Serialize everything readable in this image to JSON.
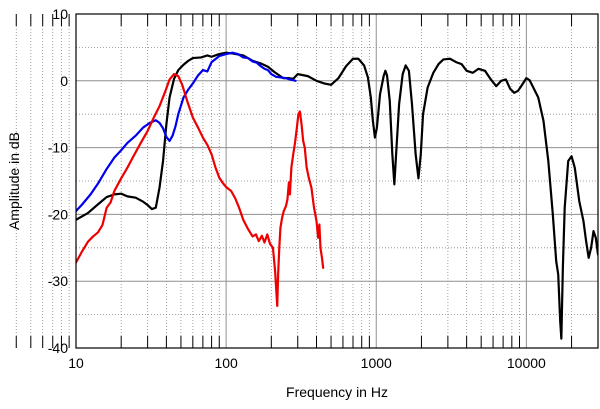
{
  "chart_data": {
    "type": "line",
    "title": "",
    "xlabel": "Frequency in Hz",
    "ylabel": "Amplitude in dB",
    "xscale": "log",
    "xlim": [
      10,
      30000
    ],
    "ylim": [
      -40,
      10
    ],
    "grid": true,
    "x_ticks": [
      10,
      100,
      1000,
      10000
    ],
    "x_tick_labels": [
      "10",
      "100",
      "1000",
      "10000"
    ],
    "y_ticks": [
      10,
      0,
      -10,
      -20,
      -30,
      -40
    ],
    "y_tick_labels": [
      "10",
      "0",
      "-10",
      "-20",
      "-30",
      "-40"
    ],
    "series": [
      {
        "color": "#000000",
        "points": [
          [
            10,
            -20.8
          ],
          [
            12,
            -19.8
          ],
          [
            14,
            -18.5
          ],
          [
            16,
            -17.4
          ],
          [
            18,
            -17.0
          ],
          [
            20,
            -16.9
          ],
          [
            22,
            -17.3
          ],
          [
            25,
            -17.5
          ],
          [
            28,
            -18.1
          ],
          [
            30,
            -18.6
          ],
          [
            32,
            -19.2
          ],
          [
            34,
            -19.0
          ],
          [
            36,
            -16.0
          ],
          [
            38,
            -12.0
          ],
          [
            40,
            -6.5
          ],
          [
            42,
            -2.5
          ],
          [
            45,
            0.3
          ],
          [
            48,
            1.6
          ],
          [
            52,
            2.4
          ],
          [
            56,
            3.0
          ],
          [
            60,
            3.4
          ],
          [
            68,
            3.5
          ],
          [
            75,
            3.8
          ],
          [
            80,
            3.6
          ],
          [
            90,
            4.0
          ],
          [
            100,
            4.2
          ],
          [
            110,
            4.1
          ],
          [
            130,
            3.8
          ],
          [
            150,
            3.0
          ],
          [
            170,
            2.6
          ],
          [
            190,
            2.1
          ],
          [
            210,
            1.3
          ],
          [
            240,
            0.4
          ],
          [
            260,
            0.4
          ],
          [
            280,
            0.3
          ],
          [
            300,
            1.0
          ],
          [
            350,
            0.7
          ],
          [
            400,
            0.0
          ],
          [
            450,
            -0.4
          ],
          [
            500,
            -0.6
          ],
          [
            560,
            0.4
          ],
          [
            630,
            2.2
          ],
          [
            700,
            3.3
          ],
          [
            760,
            3.3
          ],
          [
            830,
            2.3
          ],
          [
            880,
            0.5
          ],
          [
            920,
            -2.5
          ],
          [
            950,
            -6.0
          ],
          [
            980,
            -8.5
          ],
          [
            1010,
            -7.0
          ],
          [
            1060,
            -2.0
          ],
          [
            1120,
            0.7
          ],
          [
            1150,
            1.5
          ],
          [
            1180,
            0.8
          ],
          [
            1230,
            -3.0
          ],
          [
            1280,
            -11.0
          ],
          [
            1320,
            -15.5
          ],
          [
            1360,
            -10.5
          ],
          [
            1420,
            -3.5
          ],
          [
            1500,
            1.0
          ],
          [
            1570,
            2.3
          ],
          [
            1650,
            1.5
          ],
          [
            1730,
            -3.5
          ],
          [
            1830,
            -11.0
          ],
          [
            1910,
            -14.6
          ],
          [
            1980,
            -11.0
          ],
          [
            2050,
            -5.0
          ],
          [
            2200,
            -1.0
          ],
          [
            2400,
            1.2
          ],
          [
            2600,
            2.5
          ],
          [
            2800,
            3.2
          ],
          [
            3100,
            3.3
          ],
          [
            3400,
            2.8
          ],
          [
            3700,
            2.5
          ],
          [
            4000,
            1.5
          ],
          [
            4400,
            1.2
          ],
          [
            4800,
            1.8
          ],
          [
            5300,
            1.5
          ],
          [
            5800,
            0.2
          ],
          [
            6300,
            -0.8
          ],
          [
            6800,
            0.0
          ],
          [
            7300,
            0.2
          ],
          [
            7800,
            -1.2
          ],
          [
            8300,
            -1.8
          ],
          [
            8800,
            -1.5
          ],
          [
            9300,
            -0.7
          ],
          [
            10000,
            0.4
          ],
          [
            10500,
            0.1
          ],
          [
            11000,
            -0.8
          ],
          [
            12000,
            -2.5
          ],
          [
            13000,
            -6.0
          ],
          [
            14000,
            -12.0
          ],
          [
            15000,
            -20.0
          ],
          [
            15800,
            -27.0
          ],
          [
            16300,
            -29.0
          ],
          [
            16800,
            -36.0
          ],
          [
            17100,
            -38.6
          ],
          [
            17500,
            -28.0
          ],
          [
            18000,
            -19.0
          ],
          [
            19000,
            -12.0
          ],
          [
            20000,
            -11.3
          ],
          [
            21000,
            -13.0
          ],
          [
            22500,
            -18.0
          ],
          [
            24000,
            -21.0
          ],
          [
            25000,
            -24.0
          ],
          [
            26000,
            -26.5
          ],
          [
            27000,
            -25.0
          ],
          [
            28000,
            -22.5
          ],
          [
            29000,
            -23.5
          ],
          [
            30000,
            -26.0
          ]
        ]
      },
      {
        "color": "#0000ee",
        "points": [
          [
            10,
            -19.5
          ],
          [
            11,
            -18.5
          ],
          [
            12.5,
            -17.0
          ],
          [
            14,
            -15.4
          ],
          [
            16,
            -13.2
          ],
          [
            18,
            -11.5
          ],
          [
            20,
            -10.4
          ],
          [
            22,
            -9.3
          ],
          [
            25,
            -8.2
          ],
          [
            28,
            -7.0
          ],
          [
            31,
            -6.3
          ],
          [
            34,
            -5.9
          ],
          [
            36,
            -6.3
          ],
          [
            38,
            -7.1
          ],
          [
            40,
            -8.4
          ],
          [
            42,
            -9.0
          ],
          [
            44,
            -8.2
          ],
          [
            46,
            -6.8
          ],
          [
            48,
            -5.0
          ],
          [
            52,
            -2.5
          ],
          [
            56,
            -1.3
          ],
          [
            60,
            -0.4
          ],
          [
            65,
            0.8
          ],
          [
            70,
            1.6
          ],
          [
            75,
            1.4
          ],
          [
            80,
            2.8
          ],
          [
            90,
            3.7
          ],
          [
            100,
            4.0
          ],
          [
            110,
            4.2
          ],
          [
            120,
            4.0
          ],
          [
            130,
            3.5
          ],
          [
            140,
            3.4
          ],
          [
            150,
            2.9
          ],
          [
            160,
            2.7
          ],
          [
            170,
            2.2
          ],
          [
            180,
            1.8
          ],
          [
            190,
            1.6
          ],
          [
            200,
            1.0
          ],
          [
            215,
            0.6
          ],
          [
            230,
            0.5
          ],
          [
            250,
            0.4
          ],
          [
            265,
            0.2
          ],
          [
            280,
            0.1
          ],
          [
            290,
            0.0
          ]
        ]
      },
      {
        "color": "#ee0000",
        "points": [
          [
            10,
            -27.2
          ],
          [
            11,
            -25.5
          ],
          [
            12,
            -24.1
          ],
          [
            13,
            -23.3
          ],
          [
            14,
            -22.7
          ],
          [
            15,
            -21.6
          ],
          [
            16,
            -19.0
          ],
          [
            17,
            -18.2
          ],
          [
            18,
            -16.5
          ],
          [
            20,
            -14.6
          ],
          [
            22,
            -13.0
          ],
          [
            24,
            -11.4
          ],
          [
            27,
            -9.3
          ],
          [
            30,
            -7.5
          ],
          [
            33,
            -5.5
          ],
          [
            36,
            -3.8
          ],
          [
            39,
            -1.8
          ],
          [
            42,
            0.2
          ],
          [
            45,
            1.0
          ],
          [
            48,
            0.7
          ],
          [
            51,
            -0.6
          ],
          [
            55,
            -3.0
          ],
          [
            60,
            -5.5
          ],
          [
            65,
            -7.0
          ],
          [
            70,
            -8.5
          ],
          [
            75,
            -9.6
          ],
          [
            80,
            -11.0
          ],
          [
            85,
            -13.0
          ],
          [
            90,
            -14.5
          ],
          [
            95,
            -15.3
          ],
          [
            100,
            -15.9
          ],
          [
            108,
            -16.5
          ],
          [
            115,
            -17.6
          ],
          [
            122,
            -19.0
          ],
          [
            130,
            -20.8
          ],
          [
            140,
            -22.2
          ],
          [
            150,
            -23.3
          ],
          [
            158,
            -23.0
          ],
          [
            165,
            -24.0
          ],
          [
            173,
            -23.2
          ],
          [
            180,
            -24.2
          ],
          [
            188,
            -23.0
          ],
          [
            196,
            -24.4
          ],
          [
            205,
            -25.0
          ],
          [
            212,
            -28.5
          ],
          [
            216,
            -31.5
          ],
          [
            219,
            -33.7
          ],
          [
            222,
            -29.0
          ],
          [
            226,
            -25.0
          ],
          [
            230,
            -22.0
          ],
          [
            236,
            -20.5
          ],
          [
            242,
            -19.5
          ],
          [
            250,
            -18.8
          ],
          [
            256,
            -17.8
          ],
          [
            262,
            -15.2
          ],
          [
            266,
            -17.0
          ],
          [
            272,
            -13.0
          ],
          [
            280,
            -11.0
          ],
          [
            288,
            -9.2
          ],
          [
            296,
            -7.0
          ],
          [
            303,
            -5.0
          ],
          [
            310,
            -4.6
          ],
          [
            318,
            -6.5
          ],
          [
            326,
            -9.0
          ],
          [
            334,
            -10.0
          ],
          [
            344,
            -13.0
          ],
          [
            356,
            -14.6
          ],
          [
            370,
            -16.0
          ],
          [
            385,
            -19.0
          ],
          [
            400,
            -21.0
          ],
          [
            410,
            -23.5
          ],
          [
            418,
            -21.5
          ],
          [
            425,
            -25.0
          ],
          [
            435,
            -26.5
          ],
          [
            443,
            -28.0
          ]
        ]
      }
    ]
  }
}
